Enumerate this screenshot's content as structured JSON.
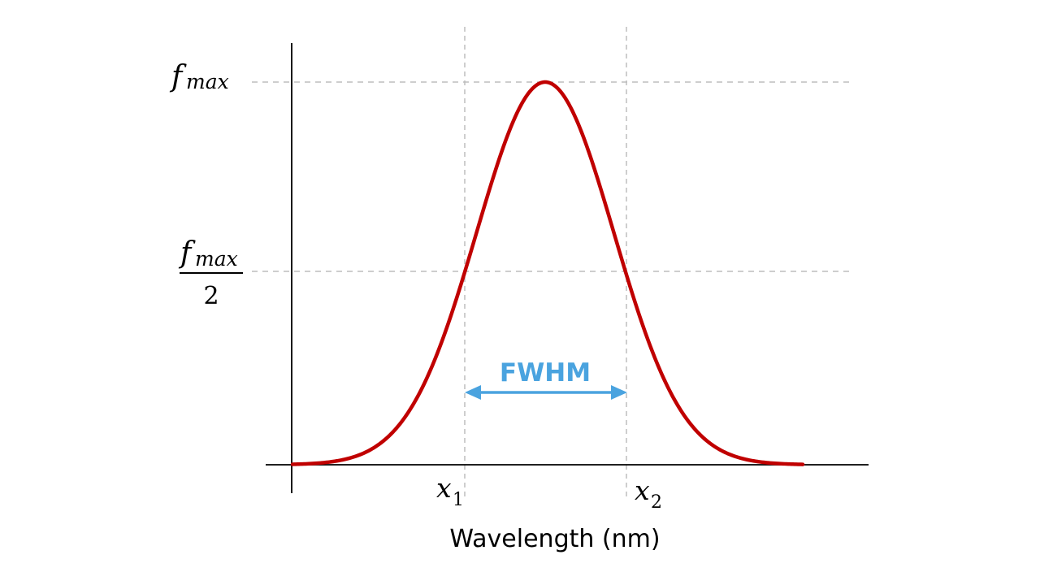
{
  "labels": {
    "fmax_base": "f",
    "fmax_sub": "max",
    "half_num_base": "f",
    "half_num_sub": "max",
    "half_den": "2",
    "x1_base": "x",
    "x1_sub": "1",
    "x2_base": "x",
    "x2_sub": "2",
    "xaxis": "Wavelength (nm)",
    "fwhm": "FWHM"
  },
  "colors": {
    "curve": "#c00000",
    "fwhm": "#4aa3df",
    "guide": "#bdbdbd",
    "axis": "#000000"
  },
  "curve": {
    "shape": "gaussian",
    "peak": 1,
    "half_max": 0.5
  }
}
